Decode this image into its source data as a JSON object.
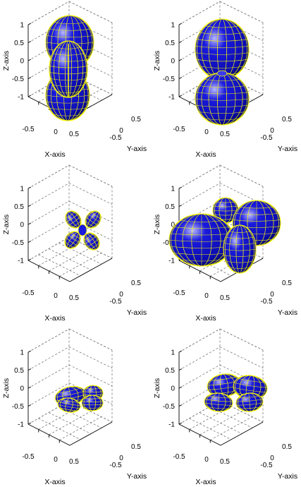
{
  "colors": {
    "surface": "#1a1adf",
    "surface_dark": "#000066",
    "highlight": "#b9b9ff",
    "mesh": "#ffff00",
    "grid": "#7a7a7a"
  },
  "axes": {
    "x_label": "X-axis",
    "y_label": "Y-axis",
    "z_label": "Z-axis",
    "x_ticks": [
      "-0.5",
      "0",
      "0.5"
    ],
    "y_ticks": [
      "-0.5",
      "0",
      "0.5"
    ],
    "z_ticks": [
      "1",
      "0.5",
      "0",
      "-0.5",
      "-1"
    ],
    "x_range": [
      -1,
      1
    ],
    "y_range": [
      -1,
      1
    ],
    "z_range": [
      -1,
      1
    ],
    "grid": "on",
    "box": "dashed"
  },
  "panels": [
    {
      "id": "top-left",
      "shape": "peanut-vertical"
    },
    {
      "id": "top-right",
      "shape": "two-lobes-vertical"
    },
    {
      "id": "middle-left",
      "shape": "four-leaf-small"
    },
    {
      "id": "middle-right",
      "shape": "multi-lobe-large"
    },
    {
      "id": "bottom-left",
      "shape": "four-lobe-flat-small"
    },
    {
      "id": "bottom-right",
      "shape": "four-lobe-flat-medium"
    }
  ]
}
